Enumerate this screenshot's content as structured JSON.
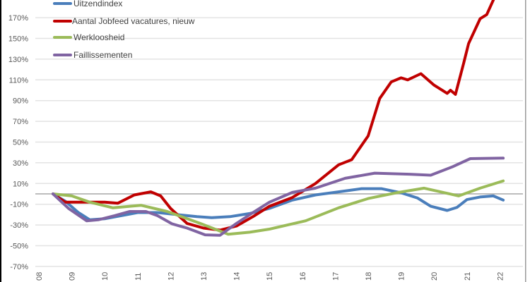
{
  "chart_data": {
    "type": "line",
    "title": "",
    "xlabel": "",
    "ylabel": "",
    "ylim": [
      -70,
      187
    ],
    "y_ticks": [
      "170%",
      "150%",
      "130%",
      "110%",
      "90%",
      "70%",
      "50%",
      "30%",
      "10%",
      "-10%",
      "-30%",
      "-50%",
      "-70%"
    ],
    "y_tick_values": [
      170,
      150,
      130,
      110,
      90,
      70,
      50,
      30,
      10,
      -10,
      -30,
      -50,
      -70
    ],
    "x_ticks": [
      "08",
      "09",
      "10",
      "11",
      "12",
      "13",
      "14",
      "15",
      "16",
      "17",
      "18",
      "19",
      "20",
      "21",
      "22"
    ],
    "x_tick_values": [
      2008,
      2009,
      2010,
      2011,
      2012,
      2013,
      2014,
      2015,
      2016,
      2017,
      2018,
      2019,
      2020,
      2021,
      2022
    ],
    "grid": true,
    "legend_position": "top-left",
    "series": [
      {
        "name": "Uitzendindex",
        "color": "#4a7ebb",
        "x": [
          2008.43,
          2008.8,
          2009.2,
          2009.55,
          2010.0,
          2010.5,
          2011.0,
          2011.6,
          2012.2,
          2012.8,
          2013.25,
          2013.8,
          2014.4,
          2015.0,
          2015.7,
          2016.4,
          2017.1,
          2017.8,
          2018.4,
          2019.0,
          2019.5,
          2019.9,
          2020.4,
          2020.7,
          2021.0,
          2021.4,
          2021.8,
          2022.1
        ],
        "y": [
          0,
          -7,
          -18,
          -25,
          -24,
          -21,
          -18,
          -18,
          -20,
          -22,
          -23,
          -22,
          -19,
          -14,
          -6,
          -1,
          2,
          5,
          5,
          1,
          -4,
          -12,
          -16,
          -13,
          -5.5,
          -3,
          -2,
          -6
        ]
      },
      {
        "name": "Aantal Jobfeed vacatures, nieuw",
        "color": "#c00000",
        "x": [
          2008.43,
          2008.8,
          2009.5,
          2010.0,
          2010.4,
          2010.9,
          2011.4,
          2011.7,
          2012.0,
          2012.5,
          2013.0,
          2013.5,
          2014.0,
          2014.5,
          2015.0,
          2015.7,
          2016.4,
          2017.1,
          2017.5,
          2018.0,
          2018.35,
          2018.7,
          2019.0,
          2019.2,
          2019.6,
          2020.0,
          2020.4,
          2020.5,
          2020.65,
          2020.9,
          2021.05,
          2021.4,
          2021.6,
          2021.8
        ],
        "y": [
          0,
          -8,
          -8,
          -8,
          -9,
          -1,
          2,
          -2,
          -14,
          -28.5,
          -33,
          -35,
          -31,
          -22,
          -12,
          -3.5,
          10,
          28,
          33,
          56,
          92,
          108,
          112,
          110,
          116,
          105,
          97,
          100,
          96,
          126,
          145,
          169,
          173,
          187
        ]
      },
      {
        "name": "Werkloosheid",
        "color": "#9bbb59",
        "x": [
          2008.43,
          2009.0,
          2009.55,
          2010.25,
          2011.1,
          2011.9,
          2012.9,
          2013.75,
          2014.4,
          2015.0,
          2016.1,
          2017.1,
          2018.0,
          2018.85,
          2019.7,
          2020.75,
          2021.4,
          2022.1
        ],
        "y": [
          0,
          -2,
          -8,
          -13.5,
          -11,
          -17,
          -28.5,
          -39,
          -37,
          -34,
          -26,
          -13.5,
          -4.5,
          1,
          5.5,
          -2,
          5.5,
          12.5
        ]
      },
      {
        "name": "Faillissementen",
        "color": "#8064a2",
        "x": [
          2008.43,
          2008.9,
          2009.45,
          2009.8,
          2010.3,
          2010.75,
          2011.25,
          2011.6,
          2012.05,
          2012.5,
          2013.05,
          2013.5,
          2014.0,
          2014.5,
          2015.0,
          2015.7,
          2016.4,
          2017.3,
          2018.2,
          2019.25,
          2019.9,
          2020.55,
          2021.1,
          2022.1
        ],
        "y": [
          0,
          -14,
          -26,
          -25,
          -21,
          -17,
          -17,
          -21,
          -29,
          -33,
          -39.5,
          -40,
          -28.5,
          -18,
          -8,
          1.4,
          5.5,
          15,
          20,
          19,
          18,
          26,
          34,
          34.5
        ]
      }
    ]
  }
}
